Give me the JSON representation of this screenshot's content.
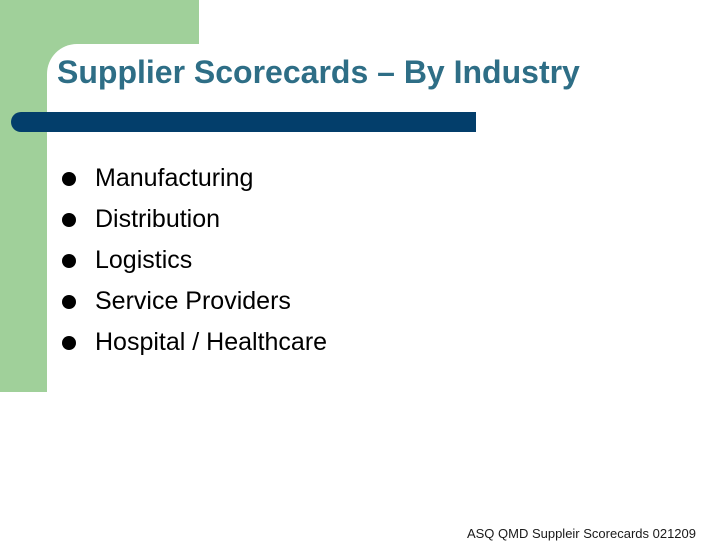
{
  "slide": {
    "title": "Supplier Scorecards – By Industry",
    "bullets": [
      "Manufacturing",
      "Distribution",
      "Logistics",
      "Service Providers",
      "Hospital / Healthcare"
    ],
    "footer": "ASQ QMD Suppleir Scorecards 021209"
  },
  "colors": {
    "accent_green": "#a0d09a",
    "title_color": "#2e6e86",
    "bar_color": "#033e6b"
  }
}
